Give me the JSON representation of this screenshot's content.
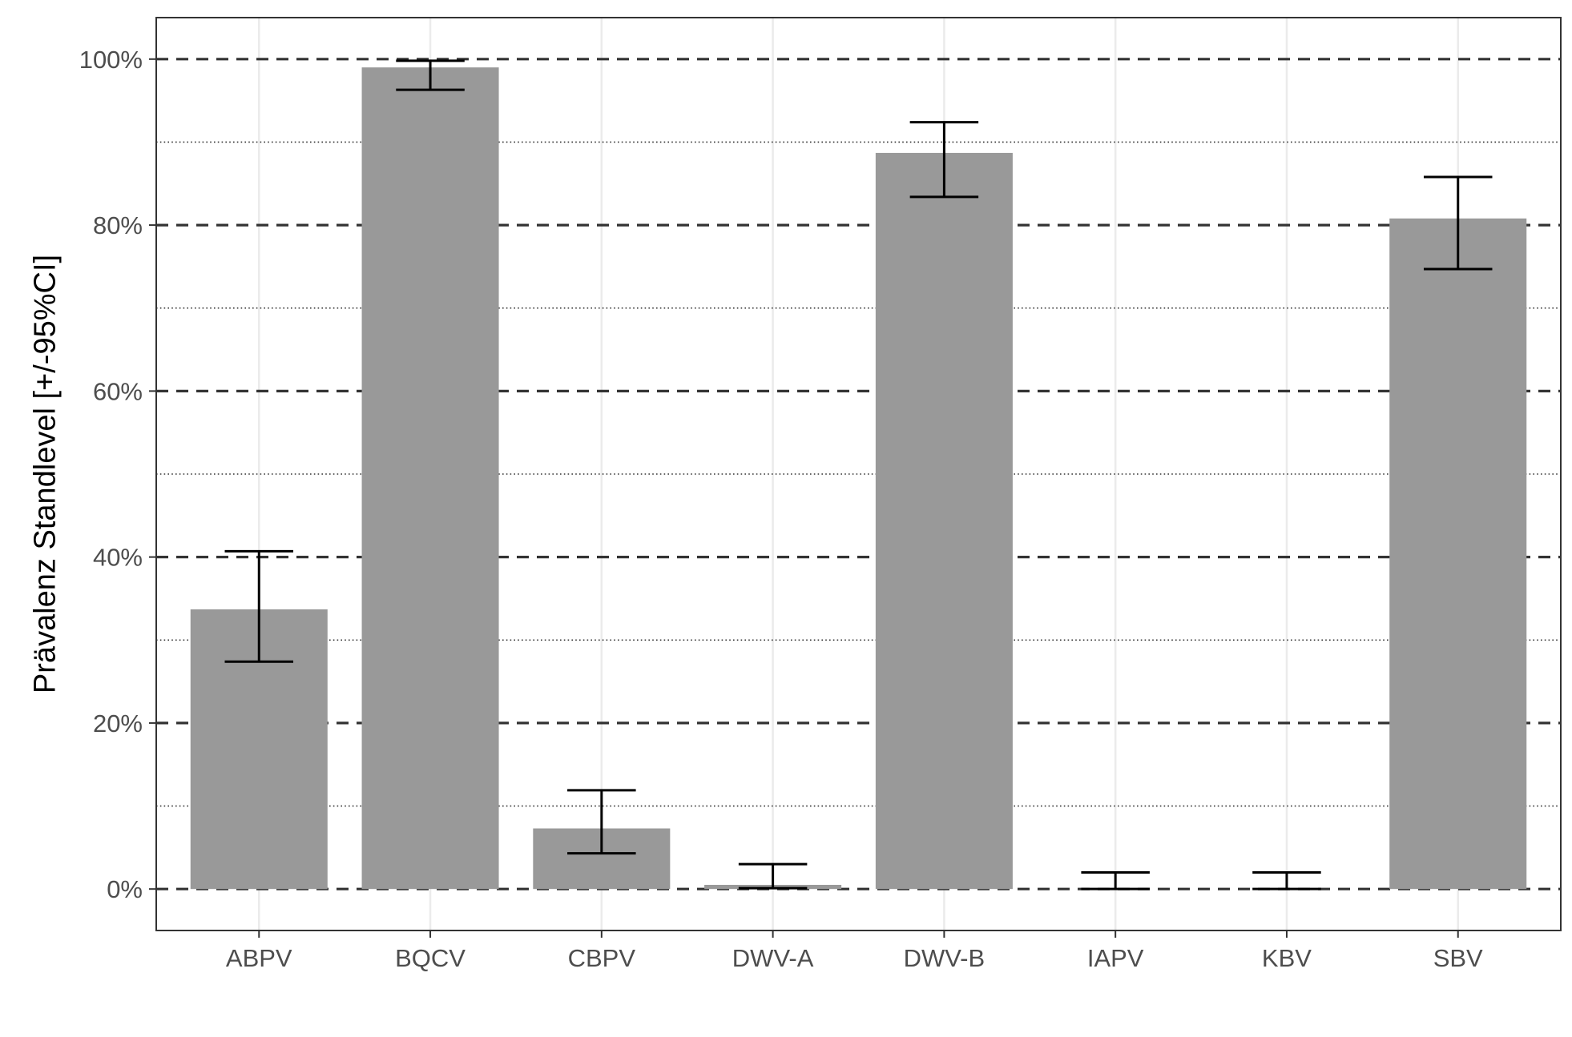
{
  "chart_data": {
    "type": "bar",
    "title": "",
    "xlabel": "",
    "ylabel": "Prävalenz Standlevel [+/-95%CI]",
    "categories": [
      "ABPV",
      "BQCV",
      "CBPV",
      "DWV-A",
      "DWV-B",
      "IAPV",
      "KBV",
      "SBV"
    ],
    "values": [
      33.7,
      99.0,
      7.3,
      0.5,
      88.7,
      0.0,
      0.0,
      80.8
    ],
    "ci_lower": [
      27.4,
      96.3,
      4.3,
      0.1,
      83.4,
      0.0,
      0.0,
      74.7
    ],
    "ci_upper": [
      40.7,
      99.8,
      11.9,
      3.0,
      92.4,
      2.0,
      2.0,
      85.8
    ],
    "ylim": [
      -5,
      105
    ],
    "y_ticks": [
      0,
      20,
      40,
      60,
      80,
      100
    ],
    "y_tick_labels": [
      "0%",
      "20%",
      "40%",
      "60%",
      "80%",
      "100%"
    ],
    "y_minor_ticks": [
      10,
      30,
      50,
      70,
      90
    ],
    "grid": true,
    "legend": "none",
    "colors": {
      "bar": "#999999",
      "errorbar": "#000000",
      "major_grid": "#333333",
      "minor_grid": "#333333",
      "x_grid": "#ebebeb",
      "panel_border": "#333333",
      "tick_label": "#4d4d4d"
    }
  }
}
